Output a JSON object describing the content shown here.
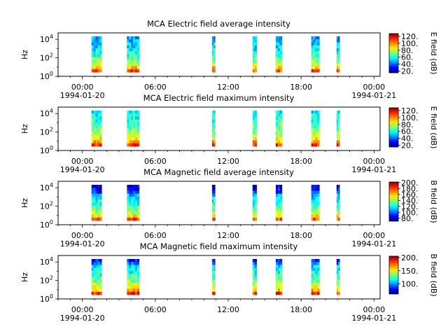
{
  "instrument": "MCA",
  "x_axis": {
    "tick_labels": [
      "00:00",
      "06:00",
      "12:00",
      "18:00",
      "00:00"
    ],
    "date_labels": [
      "1994-01-20",
      "1994-01-21"
    ],
    "start": "1994-01-19T22:00:00",
    "end": "1994-01-21T00:30:00"
  },
  "y_axis": {
    "label": "Hz",
    "tick_base": "10",
    "tick_exponents": [
      "0",
      "2",
      "4"
    ]
  },
  "colors": {
    "colormap": "jet",
    "background": "#ffffff",
    "frame": "#000000"
  },
  "chart_data": [
    {
      "type": "heatmap",
      "title": "MCA  Electric field average intensity",
      "xlabel": "",
      "ylabel": "Hz",
      "y_scale": "log",
      "ylim": [
        1,
        50000
      ],
      "colorbar": {
        "label": "E field (dB)",
        "range": [
          15,
          128
        ],
        "ticks": [
          "20.",
          "40.",
          "60.",
          "80.",
          "100.",
          "120."
        ]
      },
      "data_intervals": [
        {
          "start": "1994-01-20T00:45",
          "end": "1994-01-20T01:35"
        },
        {
          "start": "1994-01-20T03:40",
          "end": "1994-01-20T04:40"
        },
        {
          "start": "1994-01-20T10:40",
          "end": "1994-01-20T10:55"
        },
        {
          "start": "1994-01-20T14:00",
          "end": "1994-01-20T14:20"
        },
        {
          "start": "1994-01-20T15:55",
          "end": "1994-01-20T16:25"
        },
        {
          "start": "1994-01-20T18:50",
          "end": "1994-01-20T19:30"
        },
        {
          "start": "1994-01-20T20:55",
          "end": "1994-01-20T21:10"
        }
      ]
    },
    {
      "type": "heatmap",
      "title": "MCA  Electric field maximum intensity",
      "xlabel": "",
      "ylabel": "Hz",
      "y_scale": "log",
      "ylim": [
        1,
        50000
      ],
      "colorbar": {
        "label": "E field (dB)",
        "range": [
          15,
          128
        ],
        "ticks": [
          "20.",
          "40.",
          "60.",
          "80.",
          "100.",
          "120."
        ]
      },
      "data_intervals": [
        {
          "start": "1994-01-20T00:45",
          "end": "1994-01-20T01:35"
        },
        {
          "start": "1994-01-20T03:40",
          "end": "1994-01-20T04:40"
        },
        {
          "start": "1994-01-20T10:40",
          "end": "1994-01-20T10:55"
        },
        {
          "start": "1994-01-20T14:00",
          "end": "1994-01-20T14:20"
        },
        {
          "start": "1994-01-20T15:55",
          "end": "1994-01-20T16:25"
        },
        {
          "start": "1994-01-20T18:50",
          "end": "1994-01-20T19:30"
        },
        {
          "start": "1994-01-20T20:55",
          "end": "1994-01-20T21:10"
        }
      ]
    },
    {
      "type": "heatmap",
      "title": "MCA  Magnetic field average intensity",
      "xlabel": "",
      "ylabel": "Hz",
      "y_scale": "log",
      "ylim": [
        1,
        50000
      ],
      "colorbar": {
        "label": "B field (dB)",
        "range": [
          70,
          202
        ],
        "ticks": [
          "80.",
          "100.",
          "120.",
          "140.",
          "160.",
          "180.",
          "200."
        ]
      },
      "data_intervals": [
        {
          "start": "1994-01-20T00:45",
          "end": "1994-01-20T01:35"
        },
        {
          "start": "1994-01-20T03:40",
          "end": "1994-01-20T04:40"
        },
        {
          "start": "1994-01-20T10:40",
          "end": "1994-01-20T10:55"
        },
        {
          "start": "1994-01-20T14:00",
          "end": "1994-01-20T14:20"
        },
        {
          "start": "1994-01-20T15:55",
          "end": "1994-01-20T16:25"
        },
        {
          "start": "1994-01-20T18:50",
          "end": "1994-01-20T19:30"
        },
        {
          "start": "1994-01-20T20:55",
          "end": "1994-01-20T21:10"
        }
      ]
    },
    {
      "type": "heatmap",
      "title": "MCA  Magnetic field maximum intensity",
      "xlabel": "",
      "ylabel": "Hz",
      "y_scale": "log",
      "ylim": [
        1,
        50000
      ],
      "colorbar": {
        "label": "B field (dB)",
        "range": [
          62,
          205
        ],
        "ticks": [
          "100.",
          "150.",
          "200."
        ]
      },
      "data_intervals": [
        {
          "start": "1994-01-20T00:45",
          "end": "1994-01-20T01:35"
        },
        {
          "start": "1994-01-20T03:40",
          "end": "1994-01-20T04:40"
        },
        {
          "start": "1994-01-20T10:40",
          "end": "1994-01-20T10:55"
        },
        {
          "start": "1994-01-20T14:00",
          "end": "1994-01-20T14:20"
        },
        {
          "start": "1994-01-20T15:55",
          "end": "1994-01-20T16:25"
        },
        {
          "start": "1994-01-20T18:50",
          "end": "1994-01-20T19:30"
        },
        {
          "start": "1994-01-20T20:55",
          "end": "1994-01-20T21:10"
        }
      ]
    }
  ]
}
